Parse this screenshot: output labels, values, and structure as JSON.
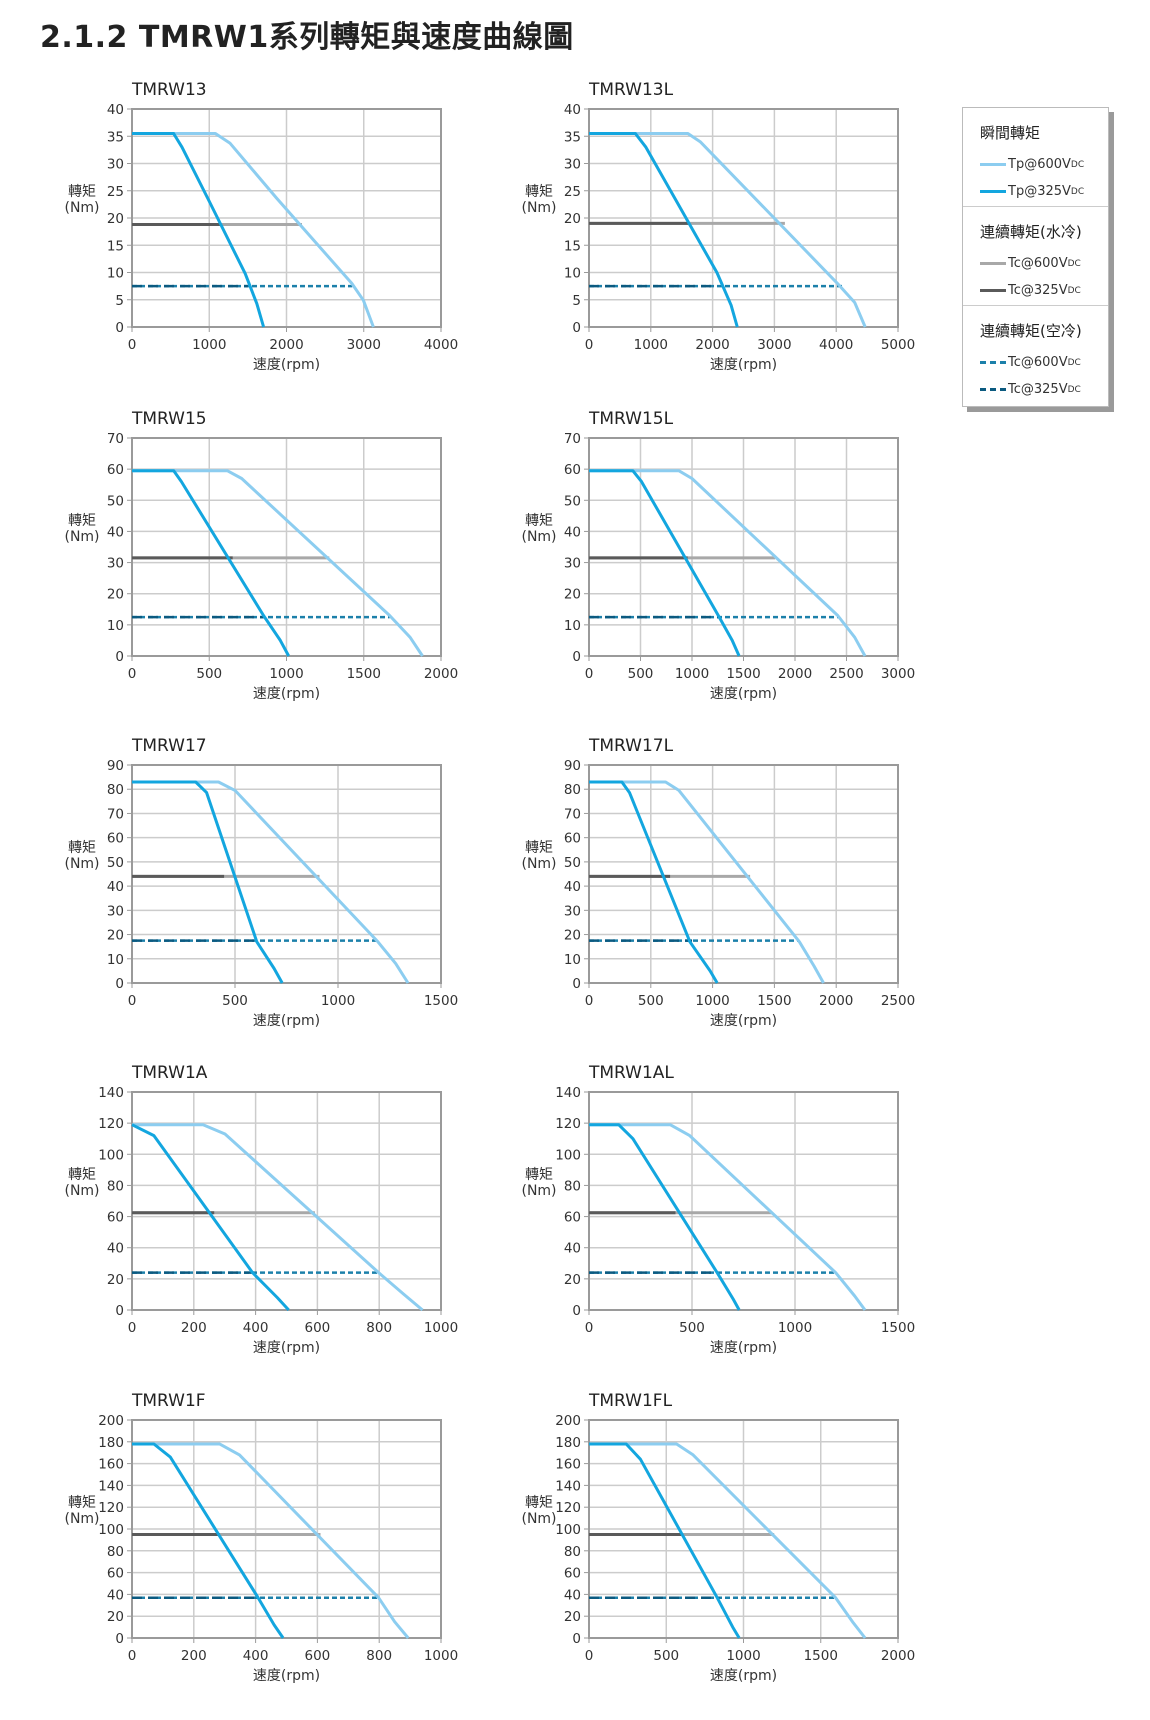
{
  "page_title": "2.1.2  TMRW1系列轉矩與速度曲線圖",
  "axis_text": {
    "y_label_chars": [
      "轉",
      "矩",
      "(Nm)"
    ],
    "x_label": "速度(rpm)"
  },
  "colors": {
    "tp600": "#8ccdf0",
    "tp325": "#13a6df",
    "tc600": "#a8a8a8",
    "tc325": "#5a5a5a",
    "air600": "#1c80aa",
    "air325": "#0b5a80",
    "grid": "#cccccc",
    "frame": "#9a9a9a"
  },
  "legend": {
    "sections": [
      {
        "title": "瞬間轉矩",
        "items": [
          {
            "key": "tp600",
            "label": "Tp@600V",
            "sub": "DC"
          },
          {
            "key": "tp325",
            "label": "Tp@325V",
            "sub": "DC"
          }
        ]
      },
      {
        "title": "連續轉矩(水冷)",
        "items": [
          {
            "key": "tc600",
            "label": "Tc@600V",
            "sub": "DC"
          },
          {
            "key": "tc325",
            "label": "Tc@325V",
            "sub": "DC"
          }
        ]
      },
      {
        "title": "連續轉矩(空冷)",
        "items": [
          {
            "key": "air600",
            "label": "Tc@600V",
            "sub": "DC"
          },
          {
            "key": "air325",
            "label": "Tc@325V",
            "sub": "DC"
          }
        ]
      }
    ]
  },
  "chart_data": [
    {
      "type": "line",
      "title": "TMRW13",
      "xlabel": "速度(rpm)",
      "ylabel": "轉矩(Nm)",
      "xlim": [
        0,
        4000
      ],
      "ylim": [
        0,
        40
      ],
      "xticks": [
        0,
        1000,
        2000,
        3000,
        4000
      ],
      "yticks": [
        0,
        5,
        10,
        15,
        20,
        25,
        30,
        35,
        40
      ],
      "grid": true,
      "series": {
        "tp600": [
          [
            0,
            35.5
          ],
          [
            1080,
            35.5
          ],
          [
            1270,
            33.7
          ],
          [
            1875,
            23.6
          ],
          [
            2845,
            8
          ],
          [
            2996,
            4.9
          ],
          [
            3125,
            0
          ]
        ],
        "tp325": [
          [
            0,
            35.5
          ],
          [
            539,
            35.5
          ],
          [
            647,
            33
          ],
          [
            991,
            23.3
          ],
          [
            1466,
            9.8
          ],
          [
            1616,
            4.3
          ],
          [
            1703,
            0
          ]
        ],
        "tc600": [
          [
            0,
            18.8
          ],
          [
            2200,
            18.8
          ]
        ],
        "tc325": [
          [
            0,
            18.8
          ],
          [
            1150,
            18.8
          ]
        ],
        "air600": [
          [
            0,
            7.5
          ],
          [
            2850,
            7.5
          ]
        ],
        "air325": [
          [
            0,
            7.5
          ],
          [
            1500,
            7.5
          ]
        ]
      }
    },
    {
      "type": "line",
      "title": "TMRW13L",
      "xlabel": "速度(rpm)",
      "ylabel": "轉矩(Nm)",
      "xlim": [
        0,
        5000
      ],
      "ylim": [
        0,
        40
      ],
      "xticks": [
        0,
        1000,
        2000,
        3000,
        4000,
        5000
      ],
      "yticks": [
        0,
        5,
        10,
        15,
        20,
        25,
        30,
        35,
        40
      ],
      "grid": true,
      "series": {
        "tp600": [
          [
            0,
            35.5
          ],
          [
            1600,
            35.5
          ],
          [
            1800,
            34
          ],
          [
            4020,
            8
          ],
          [
            4300,
            4.5
          ],
          [
            4470,
            0
          ]
        ],
        "tp325": [
          [
            0,
            35.5
          ],
          [
            750,
            35.5
          ],
          [
            920,
            33
          ],
          [
            2070,
            10
          ],
          [
            2300,
            4
          ],
          [
            2400,
            0
          ]
        ],
        "tc600": [
          [
            0,
            19
          ],
          [
            3170,
            19
          ]
        ],
        "tc325": [
          [
            0,
            19
          ],
          [
            1630,
            19
          ]
        ],
        "air600": [
          [
            0,
            7.5
          ],
          [
            4100,
            7.5
          ]
        ],
        "air325": [
          [
            0,
            7.5
          ],
          [
            2070,
            7.5
          ]
        ]
      }
    },
    {
      "type": "line",
      "title": "TMRW15",
      "xlabel": "速度(rpm)",
      "ylabel": "轉矩(Nm)",
      "xlim": [
        0,
        2000
      ],
      "ylim": [
        0,
        70
      ],
      "xticks": [
        0,
        500,
        1000,
        1500,
        2000
      ],
      "yticks": [
        0,
        10,
        20,
        30,
        40,
        50,
        60,
        70
      ],
      "grid": true,
      "series": {
        "tp600": [
          [
            0,
            59.5
          ],
          [
            617,
            59.5
          ],
          [
            710,
            57
          ],
          [
            1667,
            13
          ],
          [
            1800,
            6
          ],
          [
            1880,
            0
          ]
        ],
        "tp325": [
          [
            0,
            59.5
          ],
          [
            270,
            59.5
          ],
          [
            320,
            56
          ],
          [
            851,
            13
          ],
          [
            960,
            5
          ],
          [
            1014,
            0
          ]
        ],
        "tc600": [
          [
            0,
            31.5
          ],
          [
            1277,
            31.5
          ]
        ],
        "tc325": [
          [
            0,
            31.5
          ],
          [
            652,
            31.5
          ]
        ],
        "air600": [
          [
            0,
            12.5
          ],
          [
            1667,
            12.5
          ]
        ],
        "air325": [
          [
            0,
            12.5
          ],
          [
            851,
            12.5
          ]
        ]
      }
    },
    {
      "type": "line",
      "title": "TMRW15L",
      "xlabel": "速度(rpm)",
      "ylabel": "轉矩(Nm)",
      "xlim": [
        0,
        3000
      ],
      "ylim": [
        0,
        70
      ],
      "xticks": [
        0,
        500,
        1000,
        1500,
        2000,
        2500,
        3000
      ],
      "yticks": [
        0,
        10,
        20,
        30,
        40,
        50,
        60,
        70
      ],
      "grid": true,
      "series": {
        "tp600": [
          [
            0,
            59.5
          ],
          [
            872,
            59.5
          ],
          [
            1000,
            57
          ],
          [
            2415,
            13
          ],
          [
            2580,
            6
          ],
          [
            2680,
            0
          ]
        ],
        "tp325": [
          [
            0,
            59.5
          ],
          [
            425,
            59.5
          ],
          [
            510,
            56
          ],
          [
            1255,
            13
          ],
          [
            1390,
            5
          ],
          [
            1457,
            0
          ]
        ],
        "tc600": [
          [
            0,
            31.5
          ],
          [
            1808,
            31.5
          ]
        ],
        "tc325": [
          [
            0,
            31.5
          ],
          [
            957,
            31.5
          ]
        ],
        "air600": [
          [
            0,
            12.5
          ],
          [
            2415,
            12.5
          ]
        ],
        "air325": [
          [
            0,
            12.5
          ],
          [
            1266,
            12.5
          ]
        ]
      }
    },
    {
      "type": "line",
      "title": "TMRW17",
      "xlabel": "速度(rpm)",
      "ylabel": "轉矩(Nm)",
      "xlim": [
        0,
        1500
      ],
      "ylim": [
        0,
        90
      ],
      "xticks": [
        0,
        500,
        1000,
        1500
      ],
      "yticks": [
        0,
        10,
        20,
        30,
        40,
        50,
        60,
        70,
        80,
        90
      ],
      "grid": true,
      "series": {
        "tp600": [
          [
            0,
            83
          ],
          [
            420,
            83
          ],
          [
            500,
            79.5
          ],
          [
            1191,
            17.3
          ],
          [
            1280,
            8
          ],
          [
            1340,
            0
          ]
        ],
        "tp325": [
          [
            0,
            83
          ],
          [
            309,
            83
          ],
          [
            362,
            78.6
          ],
          [
            606,
            17
          ],
          [
            690,
            6
          ],
          [
            729,
            0
          ]
        ],
        "tc600": [
          [
            0,
            44
          ],
          [
            910,
            44
          ]
        ],
        "tc325": [
          [
            0,
            44
          ],
          [
            447,
            44
          ]
        ],
        "air600": [
          [
            0,
            17.5
          ],
          [
            1191,
            17.5
          ]
        ],
        "air325": [
          [
            0,
            17.5
          ],
          [
            606,
            17.5
          ]
        ]
      }
    },
    {
      "type": "line",
      "title": "TMRW17L",
      "xlabel": "速度(rpm)",
      "ylabel": "轉矩(Nm)",
      "xlim": [
        0,
        2500
      ],
      "ylim": [
        0,
        90
      ],
      "xticks": [
        0,
        500,
        1000,
        1500,
        2000,
        2500
      ],
      "yticks": [
        0,
        10,
        20,
        30,
        40,
        50,
        60,
        70,
        80,
        90
      ],
      "grid": true,
      "series": {
        "tp600": [
          [
            0,
            83
          ],
          [
            620,
            83
          ],
          [
            727,
            79.5
          ],
          [
            1702,
            17
          ],
          [
            1820,
            7
          ],
          [
            1897,
            0
          ]
        ],
        "tp325": [
          [
            0,
            83
          ],
          [
            266,
            83
          ],
          [
            328,
            78.6
          ],
          [
            816,
            17
          ],
          [
            980,
            5
          ],
          [
            1037,
            0
          ]
        ],
        "tc600": [
          [
            0,
            44
          ],
          [
            1303,
            44
          ]
        ],
        "tc325": [
          [
            0,
            44
          ],
          [
            656,
            44
          ]
        ],
        "air600": [
          [
            0,
            17.5
          ],
          [
            1702,
            17.5
          ]
        ],
        "air325": [
          [
            0,
            17.5
          ],
          [
            833,
            17.5
          ]
        ]
      }
    },
    {
      "type": "line",
      "title": "TMRW1A",
      "xlabel": "速度(rpm)",
      "ylabel": "轉矩(Nm)",
      "xlim": [
        0,
        1000
      ],
      "ylim": [
        0,
        140
      ],
      "xticks": [
        0,
        200,
        400,
        600,
        800,
        1000
      ],
      "yticks": [
        0,
        20,
        40,
        60,
        80,
        100,
        120,
        140
      ],
      "grid": true,
      "series": {
        "tp600": [
          [
            0,
            119
          ],
          [
            230,
            119
          ],
          [
            301,
            113
          ],
          [
            798,
            24
          ],
          [
            880,
            10
          ],
          [
            940,
            0
          ]
        ],
        "tp325": [
          [
            0,
            119
          ],
          [
            71,
            112
          ],
          [
            390,
            24
          ],
          [
            470,
            8
          ],
          [
            507,
            0
          ]
        ],
        "tc600": [
          [
            0,
            62.5
          ],
          [
            592,
            62.5
          ]
        ],
        "tc325": [
          [
            0,
            62.5
          ],
          [
            266,
            62.5
          ]
        ],
        "air600": [
          [
            0,
            24
          ],
          [
            798,
            24
          ]
        ],
        "air325": [
          [
            0,
            24
          ],
          [
            400,
            24
          ]
        ]
      }
    },
    {
      "type": "line",
      "title": "TMRW1AL",
      "xlabel": "速度(rpm)",
      "ylabel": "轉矩(Nm)",
      "xlim": [
        0,
        1500
      ],
      "ylim": [
        0,
        140
      ],
      "xticks": [
        0,
        500,
        1000,
        1500
      ],
      "yticks": [
        0,
        20,
        40,
        60,
        80,
        100,
        120,
        140
      ],
      "grid": true,
      "series": {
        "tp600": [
          [
            0,
            119
          ],
          [
            394,
            119
          ],
          [
            489,
            112
          ],
          [
            1197,
            24
          ],
          [
            1290,
            9
          ],
          [
            1340,
            0
          ]
        ],
        "tp325": [
          [
            0,
            119
          ],
          [
            144,
            119
          ],
          [
            213,
            110
          ],
          [
            622,
            24
          ],
          [
            700,
            7
          ],
          [
            729,
            0
          ]
        ],
        "tc600": [
          [
            0,
            62.5
          ],
          [
            888,
            62.5
          ]
        ],
        "tc325": [
          [
            0,
            62.5
          ],
          [
            420,
            62.5
          ]
        ],
        "air600": [
          [
            0,
            24
          ],
          [
            1197,
            24
          ]
        ],
        "air325": [
          [
            0,
            24
          ],
          [
            622,
            24
          ]
        ]
      }
    },
    {
      "type": "line",
      "title": "TMRW1F",
      "xlabel": "速度(rpm)",
      "ylabel": "轉矩(Nm)",
      "xlim": [
        0,
        1000
      ],
      "ylim": [
        0,
        200
      ],
      "xticks": [
        0,
        200,
        400,
        600,
        800,
        1000
      ],
      "yticks": [
        0,
        20,
        40,
        60,
        80,
        100,
        120,
        140,
        160,
        180,
        200
      ],
      "grid": true,
      "series": {
        "tp600": [
          [
            0,
            178
          ],
          [
            284,
            178
          ],
          [
            348,
            168
          ],
          [
            798,
            37
          ],
          [
            850,
            15
          ],
          [
            894,
            0
          ]
        ],
        "tp325": [
          [
            0,
            178
          ],
          [
            71,
            178
          ],
          [
            124,
            166
          ],
          [
            408,
            37
          ],
          [
            460,
            12
          ],
          [
            489,
            0
          ]
        ],
        "tc600": [
          [
            0,
            95
          ],
          [
            610,
            95
          ]
        ],
        "tc325": [
          [
            0,
            95
          ],
          [
            284,
            95
          ]
        ],
        "air600": [
          [
            0,
            37
          ],
          [
            798,
            37
          ]
        ],
        "air325": [
          [
            0,
            37
          ],
          [
            408,
            37
          ]
        ]
      }
    },
    {
      "type": "line",
      "title": "TMRW1FL",
      "xlabel": "速度(rpm)",
      "ylabel": "轉矩(Nm)",
      "xlim": [
        0,
        2000
      ],
      "ylim": [
        0,
        200
      ],
      "xticks": [
        0,
        500,
        1000,
        1500,
        2000
      ],
      "yticks": [
        0,
        20,
        40,
        60,
        80,
        100,
        120,
        140,
        160,
        180,
        200
      ],
      "grid": true,
      "series": {
        "tp600": [
          [
            0,
            178
          ],
          [
            567,
            178
          ],
          [
            674,
            168
          ],
          [
            1596,
            37
          ],
          [
            1710,
            14
          ],
          [
            1787,
            0
          ]
        ],
        "tp325": [
          [
            0,
            178
          ],
          [
            241,
            178
          ],
          [
            333,
            164
          ],
          [
            830,
            37
          ],
          [
            930,
            10
          ],
          [
            972,
            0
          ]
        ],
        "tc600": [
          [
            0,
            95
          ],
          [
            1199,
            95
          ]
        ],
        "tc325": [
          [
            0,
            95
          ],
          [
            596,
            95
          ]
        ],
        "air600": [
          [
            0,
            37
          ],
          [
            1596,
            37
          ]
        ],
        "air325": [
          [
            0,
            37
          ],
          [
            844,
            37
          ]
        ]
      }
    }
  ]
}
